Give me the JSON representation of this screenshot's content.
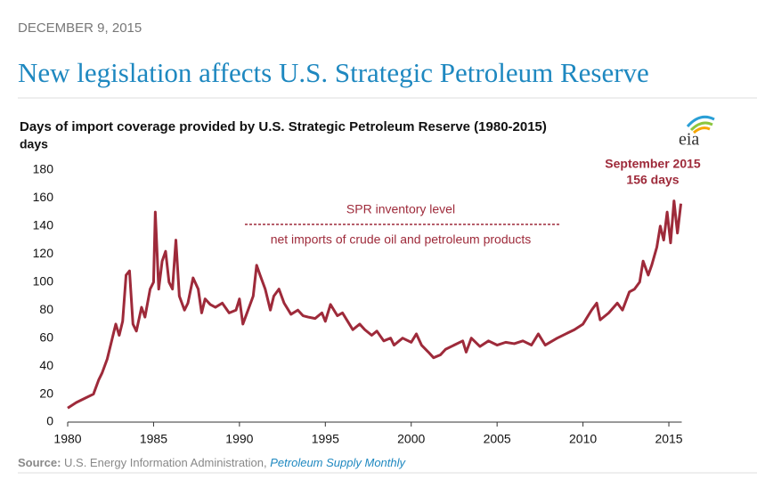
{
  "date": "DECEMBER 9, 2015",
  "headline": "New legislation affects U.S. Strategic Petroleum Reserve",
  "logo": "eia",
  "source": {
    "label": "Source:",
    "text": "U.S. Energy Information Administration,",
    "link": "Petroleum Supply Monthly"
  },
  "chart_data": {
    "type": "line",
    "title": "Days of import coverage provided by U.S. Strategic Petroleum Reserve (1980-2015)",
    "y_label": "days",
    "annotations": [
      "SPR inventory level",
      "net imports of crude oil and petroleum products",
      "September 2015",
      "156 days"
    ],
    "xlim": [
      1980,
      2015.75
    ],
    "xticks": [
      1980,
      1985,
      1990,
      1995,
      2000,
      2005,
      2010,
      2015
    ],
    "ylim": [
      0,
      180
    ],
    "yticks": [
      0,
      20,
      40,
      60,
      80,
      100,
      120,
      140,
      160,
      180
    ],
    "grid": false,
    "series": [
      {
        "name": "days",
        "color": "#9e2a3a",
        "x": [
          1980.0,
          1980.5,
          1981.0,
          1981.5,
          1981.8,
          1982.0,
          1982.3,
          1982.6,
          1982.8,
          1983.0,
          1983.2,
          1983.4,
          1983.6,
          1983.8,
          1984.0,
          1984.3,
          1984.5,
          1984.8,
          1985.0,
          1985.1,
          1985.3,
          1985.5,
          1985.7,
          1985.9,
          1986.1,
          1986.3,
          1986.5,
          1986.8,
          1987.0,
          1987.3,
          1987.6,
          1987.8,
          1988.0,
          1988.3,
          1988.6,
          1989.0,
          1989.4,
          1989.8,
          1990.0,
          1990.2,
          1990.5,
          1990.8,
          1991.0,
          1991.2,
          1991.5,
          1991.8,
          1992.0,
          1992.3,
          1992.6,
          1993.0,
          1993.4,
          1993.7,
          1994.0,
          1994.4,
          1994.8,
          1995.0,
          1995.3,
          1995.7,
          1996.0,
          1996.3,
          1996.6,
          1997.0,
          1997.3,
          1997.7,
          1998.0,
          1998.4,
          1998.8,
          1999.0,
          1999.5,
          2000.0,
          2000.3,
          2000.6,
          2001.0,
          2001.3,
          2001.7,
          2002.0,
          2002.5,
          2003.0,
          2003.2,
          2003.5,
          2004.0,
          2004.5,
          2005.0,
          2005.5,
          2006.0,
          2006.5,
          2007.0,
          2007.4,
          2007.8,
          2008.5,
          2009.0,
          2009.5,
          2010.0,
          2010.5,
          2010.8,
          2011.0,
          2011.5,
          2012.0,
          2012.3,
          2012.7,
          2013.0,
          2013.3,
          2013.5,
          2013.8,
          2014.0,
          2014.3,
          2014.5,
          2014.7,
          2014.9,
          2015.1,
          2015.3,
          2015.5,
          2015.7
        ],
        "values": [
          10,
          14,
          17,
          20,
          30,
          35,
          45,
          60,
          70,
          62,
          72,
          105,
          108,
          70,
          65,
          82,
          75,
          95,
          100,
          150,
          95,
          115,
          122,
          100,
          95,
          130,
          90,
          80,
          85,
          103,
          95,
          78,
          88,
          84,
          82,
          85,
          78,
          80,
          88,
          70,
          80,
          90,
          112,
          105,
          95,
          80,
          90,
          95,
          85,
          77,
          80,
          76,
          75,
          74,
          78,
          72,
          84,
          76,
          78,
          72,
          66,
          70,
          66,
          62,
          65,
          58,
          60,
          55,
          60,
          57,
          63,
          55,
          50,
          46,
          48,
          52,
          55,
          58,
          50,
          60,
          54,
          58,
          55,
          57,
          56,
          58,
          55,
          63,
          55,
          60,
          63,
          66,
          70,
          80,
          85,
          73,
          78,
          85,
          80,
          93,
          95,
          100,
          115,
          105,
          112,
          125,
          140,
          130,
          150,
          128,
          158,
          135,
          156
        ]
      }
    ]
  }
}
